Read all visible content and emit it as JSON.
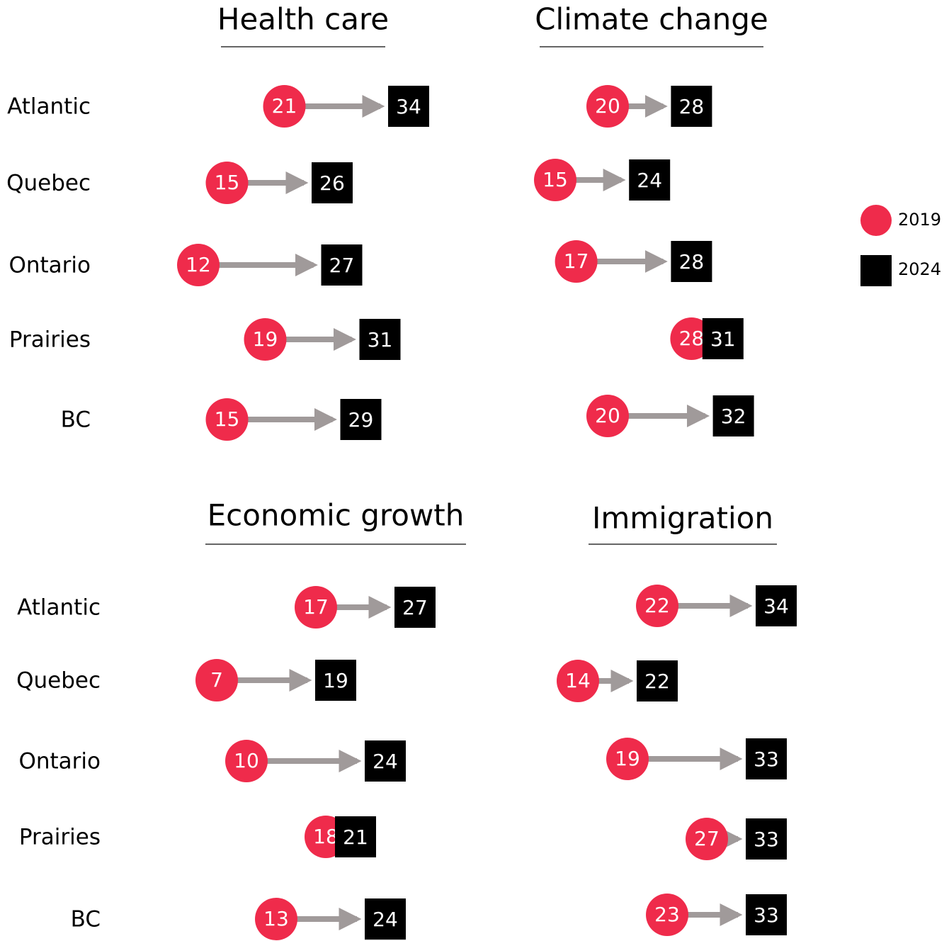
{
  "chart_data": [
    {
      "type": "arrow",
      "title": "Health care",
      "categories": [
        "Atlantic",
        "Quebec",
        "Ontario",
        "Prairies",
        "BC"
      ],
      "series": [
        {
          "name": "2019",
          "color": "#ef2b4b",
          "values": [
            21,
            15,
            12,
            19,
            15
          ]
        },
        {
          "name": "2024",
          "color": "#000000",
          "values": [
            34,
            26,
            27,
            31,
            29
          ]
        }
      ]
    },
    {
      "type": "arrow",
      "title": "Climate change",
      "series": [
        {
          "values": [
            20,
            15,
            17,
            28,
            20
          ]
        },
        {
          "values": [
            28,
            24,
            28,
            31,
            32
          ]
        }
      ]
    },
    {
      "type": "arrow",
      "title": "Economic growth",
      "categories": [
        "Atlantic",
        "Quebec",
        "Ontario",
        "Prairies",
        "BC"
      ],
      "series": [
        {
          "values": [
            17,
            7,
            10,
            18,
            13
          ]
        },
        {
          "values": [
            27,
            19,
            24,
            21,
            24
          ]
        }
      ]
    },
    {
      "type": "arrow",
      "title": "Immigration",
      "series": [
        {
          "values": [
            22,
            14,
            19,
            27,
            23
          ]
        },
        {
          "values": [
            34,
            22,
            33,
            33,
            33
          ]
        }
      ]
    }
  ]
}
